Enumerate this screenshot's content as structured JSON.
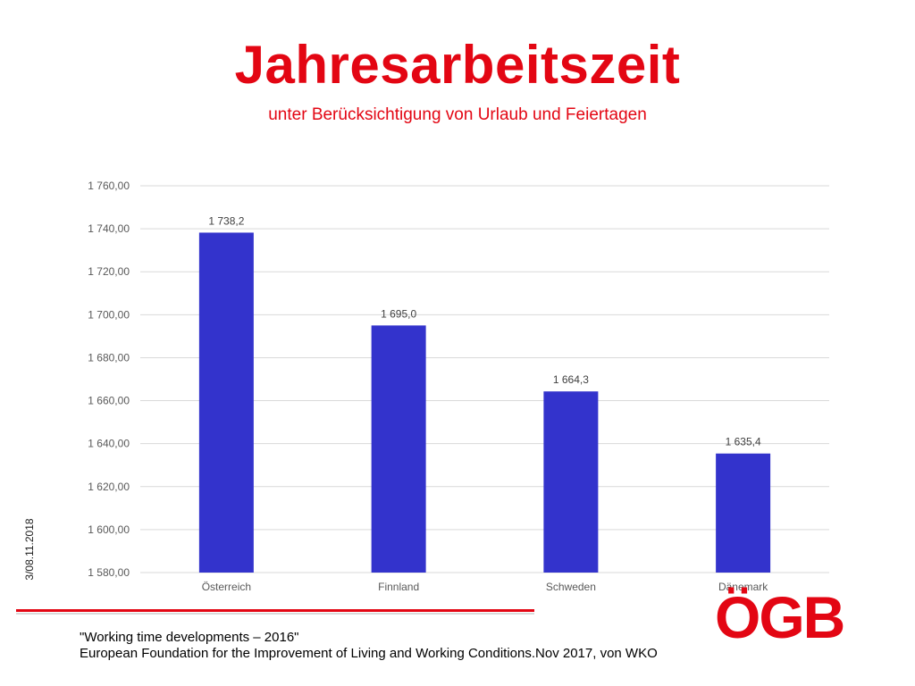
{
  "slide": {
    "title": "Jahresarbeitszeit",
    "subtitle": "unter Berücksichtigung von Urlaub und Feiertagen",
    "date": "3/08.11.2018",
    "source_line1": "\"Working time developments – 2016\"",
    "source_line2": "European Foundation for the Improvement of Living and Working Conditions.Nov 2017, von WKO",
    "logo_text": "ÖGB"
  },
  "colors": {
    "accent": "#e30613",
    "bar": "#3333cc",
    "grid": "#d9d9d9",
    "tick_text": "#595959"
  },
  "chart_data": {
    "type": "bar",
    "categories": [
      "Österreich",
      "Finnland",
      "Schweden",
      "Dänemark"
    ],
    "values": [
      1738.2,
      1695.0,
      1664.3,
      1635.4
    ],
    "value_labels": [
      "1 738,2",
      "1 695,0",
      "1 664,3",
      "1 635,4"
    ],
    "ylim": [
      1580,
      1760
    ],
    "y_ticks": [
      1580,
      1600,
      1620,
      1640,
      1660,
      1680,
      1700,
      1720,
      1740,
      1760
    ],
    "y_tick_labels": [
      "1 580,00",
      "1 600,00",
      "1 620,00",
      "1 640,00",
      "1 660,00",
      "1 680,00",
      "1 700,00",
      "1 720,00",
      "1 740,00",
      "1 760,00"
    ],
    "grid": true,
    "legend": "none",
    "xlabel": "",
    "ylabel": ""
  }
}
